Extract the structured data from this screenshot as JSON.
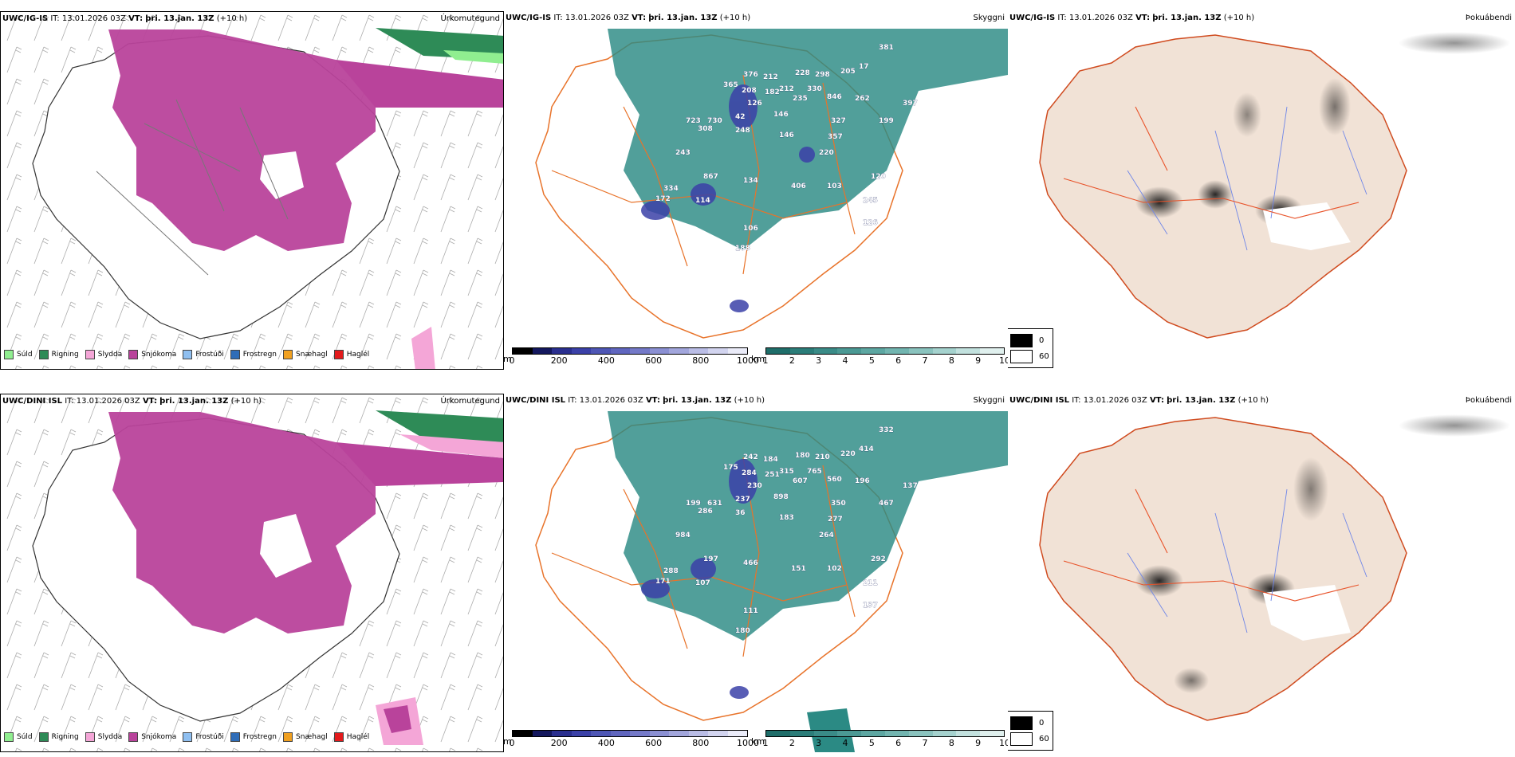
{
  "rows": [
    {
      "model": "UWC/IG-IS",
      "it_label": "IT:",
      "it_value": "13.01.2026 03Z",
      "vt_label": "VT:",
      "vt_value": "þri. 13.jan. 13Z",
      "lead": "(+10 h)",
      "panels": [
        "Úrkomutegund",
        "Skyggni",
        "Þokuábendi"
      ],
      "peaks": [
        "381",
        "376",
        "212",
        "228",
        "298",
        "205",
        "17",
        "365",
        "208",
        "182",
        "212",
        "330",
        "262",
        "397",
        "126",
        "235",
        "846",
        "42",
        "146",
        "327",
        "199",
        "723",
        "730",
        "308",
        "248",
        "146",
        "357",
        "220",
        "243",
        "867",
        "134",
        "120",
        "406",
        "103",
        "245",
        "172",
        "334",
        "114",
        "106",
        "188",
        "126"
      ]
    },
    {
      "model": "UWC/DINI ISL",
      "it_label": "IT:",
      "it_value": "13.01.2026 03Z",
      "vt_label": "VT:",
      "vt_value": "þri. 13.jan. 13Z",
      "lead": "(+10 h)",
      "panels": [
        "Úrkomutegund",
        "Skyggni",
        "Þokuábendi"
      ],
      "peaks": [
        "332",
        "242",
        "184",
        "180",
        "210",
        "220",
        "414",
        "175",
        "284",
        "251",
        "315",
        "765",
        "196",
        "137",
        "230",
        "607",
        "560",
        "237",
        "898",
        "350",
        "467",
        "199",
        "631",
        "286",
        "36",
        "183",
        "277",
        "264",
        "984",
        "197",
        "466",
        "292",
        "151",
        "102",
        "211",
        "171",
        "288",
        "107",
        "111",
        "180",
        "137"
      ]
    }
  ],
  "precip_legend": [
    {
      "label": "Súld",
      "color": "#90ee90"
    },
    {
      "label": "Rigning",
      "color": "#2e8b57"
    },
    {
      "label": "Slydda",
      "color": "#f4a6d7"
    },
    {
      "label": "Snjókoma",
      "color": "#b9439b"
    },
    {
      "label": "Frostúði",
      "color": "#8fbff0"
    },
    {
      "label": "Frostregn",
      "color": "#2f6db8"
    },
    {
      "label": "Snæhagl",
      "color": "#f0a020"
    },
    {
      "label": "Haglél",
      "color": "#e31a1c"
    }
  ],
  "height_scale": {
    "unit": "m",
    "ticks": [
      "0",
      "200",
      "400",
      "600",
      "800",
      "1000"
    ],
    "colors": [
      "#000000",
      "#14185e",
      "#2a2f8f",
      "#3b41a8",
      "#4e56b5",
      "#6066bf",
      "#7479c8",
      "#8b90d3",
      "#a2a6dc",
      "#babde6",
      "#d2d4ef",
      "#eaebf8"
    ]
  },
  "visibility_scale": {
    "unit": "km",
    "ticks": [
      "1",
      "2",
      "3",
      "4",
      "5",
      "6",
      "7",
      "8",
      "9",
      "10"
    ],
    "colors": [
      "#1f6e6a",
      "#2b7d79",
      "#3a8b87",
      "#4b9994",
      "#5da7a2",
      "#72b5b0",
      "#8ac3be",
      "#a5d2ce",
      "#c2e1de",
      "#e0f0ee"
    ]
  },
  "fog_key": {
    "high": "0",
    "low": "60"
  },
  "colors": {
    "snow": "#b9439b",
    "rain": "#2e8b57",
    "drizzle": "#90ee90",
    "sleet": "#f4a6d7",
    "vis_teal": "#2b8a84",
    "land": "#f1e2d6",
    "roads": "#e8732a"
  }
}
